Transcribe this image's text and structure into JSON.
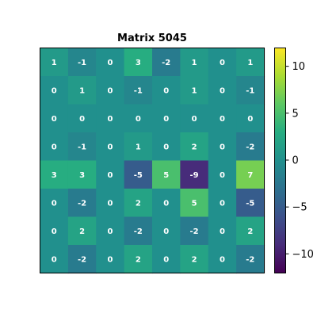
{
  "chart_data": {
    "type": "heatmap",
    "title": "Matrix 5045",
    "colormap": "viridis",
    "vmin": -12,
    "vmax": 12,
    "matrix": [
      [
        1,
        -1,
        0,
        3,
        -2,
        1,
        0,
        1
      ],
      [
        0,
        1,
        0,
        -1,
        0,
        1,
        0,
        -1
      ],
      [
        0,
        0,
        0,
        0,
        0,
        0,
        0,
        0
      ],
      [
        0,
        -1,
        0,
        1,
        0,
        2,
        0,
        -2
      ],
      [
        3,
        3,
        0,
        -5,
        5,
        -9,
        0,
        7
      ],
      [
        0,
        -2,
        0,
        2,
        0,
        5,
        0,
        -5
      ],
      [
        0,
        2,
        0,
        -2,
        0,
        -2,
        0,
        2
      ],
      [
        0,
        -2,
        0,
        2,
        0,
        2,
        0,
        -2
      ]
    ],
    "colorbar": {
      "ticks": [
        10,
        5,
        0,
        -5,
        -10
      ],
      "tick_labels": [
        "10",
        "5",
        "0",
        "−5",
        "−10"
      ]
    },
    "show_axis_ticks": false
  }
}
